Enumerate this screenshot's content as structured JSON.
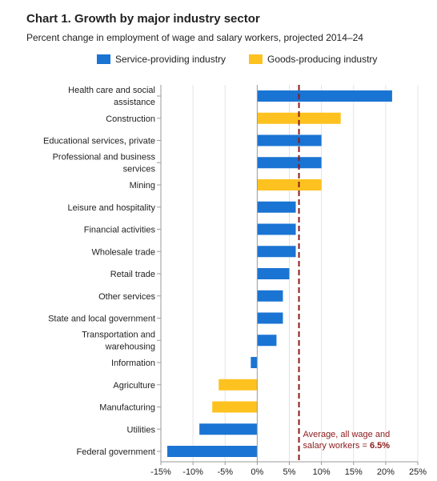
{
  "chart_data": {
    "type": "bar",
    "orientation": "horizontal",
    "title": "Chart 1. Growth by major industry sector",
    "subtitle": "Percent change in employment of wage and salary workers, projected 2014–24",
    "xlim": [
      -15,
      25
    ],
    "x_ticks": [
      -15,
      -10,
      -5,
      0,
      5,
      10,
      15,
      20,
      25
    ],
    "x_tick_labels": [
      "-15%",
      "-10%",
      "-5%",
      "0%",
      "5%",
      "10%",
      "15%",
      "20%",
      "25%"
    ],
    "grid": "vertical",
    "legend_position": "top",
    "series": [
      {
        "name": "Service-providing industry",
        "color": "#1a74d3"
      },
      {
        "name": "Goods-producing industry",
        "color": "#fdc21f"
      }
    ],
    "categories": [
      [
        "Health care and social",
        "assistance"
      ],
      [
        "Construction"
      ],
      [
        "Educational services, private"
      ],
      [
        "Professional and business",
        "services"
      ],
      [
        "Mining"
      ],
      [
        "Leisure and hospitality"
      ],
      [
        "Financial activities"
      ],
      [
        "Wholesale trade"
      ],
      [
        "Retail trade"
      ],
      [
        "Other services"
      ],
      [
        "State and local government"
      ],
      [
        "Transportation and",
        "warehousing"
      ],
      [
        "Information"
      ],
      [
        "Agriculture"
      ],
      [
        "Manufacturing"
      ],
      [
        "Utilities"
      ],
      [
        "Federal government"
      ]
    ],
    "values": [
      21,
      13,
      10,
      10,
      10,
      6,
      6,
      6,
      5,
      4,
      4,
      3,
      -1,
      -6,
      -7,
      -9,
      -14
    ],
    "sectors": [
      0,
      1,
      0,
      0,
      1,
      0,
      0,
      0,
      0,
      0,
      0,
      0,
      0,
      1,
      1,
      0,
      0
    ],
    "reference_line": {
      "value": 6.5,
      "color": "#8b1a1a",
      "label_lines": [
        "Average, all wage and",
        "salary workers = "
      ],
      "value_label": "6.5%"
    }
  }
}
